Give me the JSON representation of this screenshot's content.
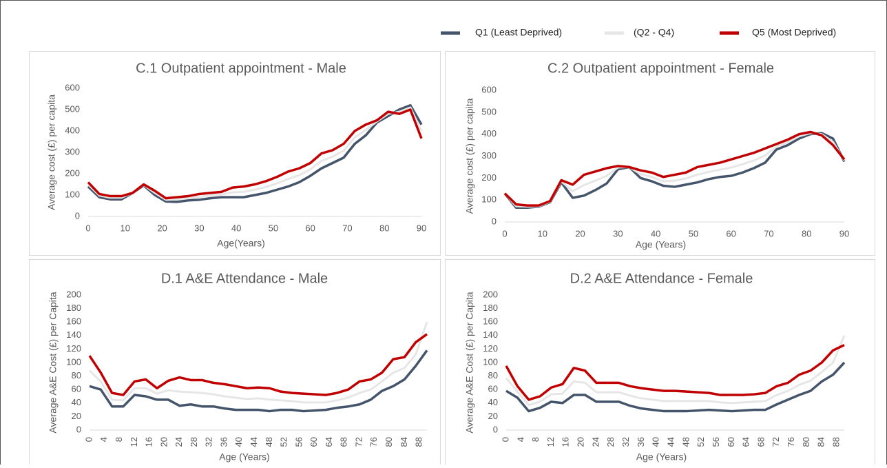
{
  "chart_data": [
    {
      "type": "line",
      "title": "C.1 Outpatient appointment - Male",
      "x_label": "Age(Years)",
      "y_label": "Average cost (£) per capita",
      "x": [
        0,
        3,
        6,
        9,
        12,
        15,
        18,
        21,
        24,
        27,
        30,
        33,
        36,
        39,
        42,
        45,
        48,
        51,
        54,
        57,
        60,
        63,
        66,
        69,
        72,
        75,
        78,
        81,
        84,
        87,
        90
      ],
      "xlim": [
        0,
        90
      ],
      "xticks": [
        0,
        10,
        20,
        30,
        40,
        50,
        60,
        70,
        80,
        90
      ],
      "ylim": [
        0,
        600
      ],
      "yticks": [
        0,
        100,
        200,
        300,
        400,
        500,
        600
      ],
      "series": [
        {
          "name": "Q1 (Least Deprived)",
          "color": "#44546a",
          "values": [
            140,
            90,
            80,
            80,
            110,
            145,
            100,
            70,
            68,
            75,
            78,
            85,
            90,
            90,
            90,
            100,
            110,
            125,
            140,
            160,
            190,
            225,
            250,
            275,
            340,
            380,
            440,
            470,
            500,
            520,
            430
          ]
        },
        {
          "name": "(Q2 - Q4)",
          "color": "#e6e6e6",
          "values": [
            150,
            98,
            88,
            88,
            110,
            148,
            110,
            78,
            79,
            85,
            92,
            98,
            103,
            113,
            115,
            125,
            138,
            155,
            175,
            193,
            220,
            260,
            280,
            308,
            370,
            405,
            445,
            480,
            490,
            510,
            400
          ]
        },
        {
          "name": "Q5 (Most Deprived)",
          "color": "#c00000",
          "values": [
            160,
            105,
            95,
            95,
            110,
            150,
            120,
            85,
            90,
            95,
            105,
            110,
            115,
            135,
            140,
            150,
            165,
            185,
            210,
            225,
            250,
            295,
            310,
            340,
            400,
            430,
            450,
            490,
            480,
            500,
            365
          ]
        }
      ]
    },
    {
      "type": "line",
      "title": "C.2 Outpatient appointment - Female",
      "x_label": "Age  (Years)",
      "y_label": "Average cost (£) per capita",
      "x": [
        0,
        3,
        6,
        9,
        12,
        15,
        18,
        21,
        24,
        27,
        30,
        33,
        36,
        39,
        42,
        45,
        48,
        51,
        54,
        57,
        60,
        63,
        66,
        69,
        72,
        75,
        78,
        81,
        84,
        87,
        90
      ],
      "xlim": [
        0,
        90
      ],
      "xticks": [
        0,
        10,
        20,
        30,
        40,
        50,
        60,
        70,
        80,
        90
      ],
      "ylim": [
        0,
        600
      ],
      "yticks": [
        0,
        100,
        200,
        300,
        400,
        500,
        600
      ],
      "series": [
        {
          "name": "Q1 (Least Deprived)",
          "color": "#44546a",
          "values": [
            130,
            65,
            65,
            70,
            90,
            180,
            110,
            120,
            145,
            175,
            240,
            250,
            200,
            185,
            165,
            160,
            170,
            180,
            195,
            205,
            210,
            225,
            245,
            270,
            330,
            350,
            380,
            400,
            405,
            380,
            275
          ]
        },
        {
          "name": "(Q2 - Q4)",
          "color": "#e6e6e6",
          "values": [
            130,
            72,
            70,
            72,
            92,
            185,
            140,
            168,
            188,
            210,
            248,
            250,
            218,
            205,
            185,
            188,
            198,
            215,
            228,
            238,
            248,
            263,
            280,
            303,
            343,
            363,
            390,
            405,
            400,
            365,
            280
          ]
        },
        {
          "name": "Q5 (Most Deprived)",
          "color": "#c00000",
          "values": [
            130,
            80,
            75,
            75,
            95,
            190,
            170,
            215,
            230,
            245,
            255,
            250,
            235,
            225,
            205,
            215,
            225,
            250,
            260,
            270,
            285,
            300,
            315,
            335,
            355,
            375,
            400,
            410,
            395,
            350,
            285
          ]
        }
      ]
    },
    {
      "type": "line",
      "title": "D.1 A&E Attendance - Male",
      "x_label": "Age (Years)",
      "y_label": "Average A&E Cost  (£) per Capita",
      "x": [
        0,
        3,
        6,
        9,
        12,
        15,
        18,
        21,
        24,
        27,
        30,
        33,
        36,
        39,
        42,
        45,
        48,
        51,
        54,
        57,
        60,
        63,
        66,
        69,
        72,
        75,
        78,
        81,
        84,
        87,
        90
      ],
      "xlim": [
        0,
        90
      ],
      "xticks": [
        0,
        4,
        8,
        12,
        16,
        20,
        24,
        28,
        32,
        36,
        40,
        44,
        48,
        52,
        56,
        60,
        64,
        68,
        72,
        76,
        80,
        84,
        88
      ],
      "ylim": [
        0,
        200
      ],
      "yticks": [
        0,
        20,
        40,
        60,
        80,
        100,
        120,
        140,
        160,
        180,
        200
      ],
      "series": [
        {
          "name": "Q1 (Least Deprived)",
          "color": "#44546a",
          "values": [
            65,
            60,
            35,
            35,
            52,
            50,
            45,
            45,
            36,
            38,
            35,
            35,
            32,
            30,
            30,
            30,
            28,
            30,
            30,
            28,
            29,
            30,
            33,
            35,
            38,
            45,
            58,
            65,
            75,
            95,
            118
          ]
        },
        {
          "name": "(Q2 - Q4)",
          "color": "#e6e6e6",
          "values": [
            88,
            72,
            45,
            44,
            62,
            62,
            54,
            59,
            57,
            56,
            55,
            53,
            50,
            48,
            46,
            47,
            45,
            44,
            43,
            41,
            41,
            41,
            44,
            48,
            55,
            60,
            72,
            85,
            92,
            112,
            160
          ]
        },
        {
          "name": "Q5 (Most Deprived)",
          "color": "#c00000",
          "values": [
            110,
            85,
            55,
            52,
            72,
            75,
            62,
            73,
            78,
            74,
            74,
            70,
            68,
            65,
            62,
            63,
            62,
            57,
            55,
            54,
            53,
            52,
            55,
            60,
            72,
            75,
            85,
            105,
            108,
            130,
            142
          ]
        }
      ]
    },
    {
      "type": "line",
      "title": "D.2 A&E Attendance - Female",
      "x_label": "Age (Years)",
      "y_label": "Average A&E Cost  (£) per Capita",
      "x": [
        0,
        3,
        6,
        9,
        12,
        15,
        18,
        21,
        24,
        27,
        30,
        33,
        36,
        39,
        42,
        45,
        48,
        51,
        54,
        57,
        60,
        63,
        66,
        69,
        72,
        75,
        78,
        81,
        84,
        87,
        90
      ],
      "xlim": [
        0,
        90
      ],
      "xticks": [
        0,
        4,
        8,
        12,
        16,
        20,
        24,
        28,
        32,
        36,
        40,
        44,
        48,
        52,
        56,
        60,
        64,
        68,
        72,
        76,
        80,
        84,
        88
      ],
      "ylim": [
        0,
        200
      ],
      "yticks": [
        0,
        20,
        40,
        60,
        80,
        100,
        120,
        140,
        160,
        180,
        200
      ],
      "series": [
        {
          "name": "Q1 (Least Deprived)",
          "color": "#44546a",
          "values": [
            58,
            48,
            28,
            33,
            42,
            40,
            52,
            52,
            42,
            42,
            42,
            36,
            32,
            30,
            28,
            28,
            28,
            29,
            30,
            29,
            28,
            29,
            30,
            30,
            38,
            45,
            52,
            58,
            72,
            82,
            100
          ]
        },
        {
          "name": "(Q2 - Q4)",
          "color": "#e6e6e6",
          "values": [
            77,
            57,
            37,
            42,
            53,
            54,
            72,
            70,
            56,
            56,
            56,
            51,
            47,
            45,
            43,
            43,
            43,
            43,
            43,
            41,
            40,
            41,
            42,
            43,
            52,
            58,
            67,
            73,
            86,
            100,
            140
          ]
        },
        {
          "name": "Q5 (Most Deprived)",
          "color": "#c00000",
          "values": [
            95,
            65,
            45,
            50,
            63,
            68,
            92,
            88,
            70,
            70,
            70,
            65,
            62,
            60,
            58,
            58,
            57,
            56,
            55,
            52,
            52,
            52,
            53,
            55,
            65,
            70,
            82,
            88,
            100,
            118,
            126
          ]
        }
      ]
    }
  ]
}
